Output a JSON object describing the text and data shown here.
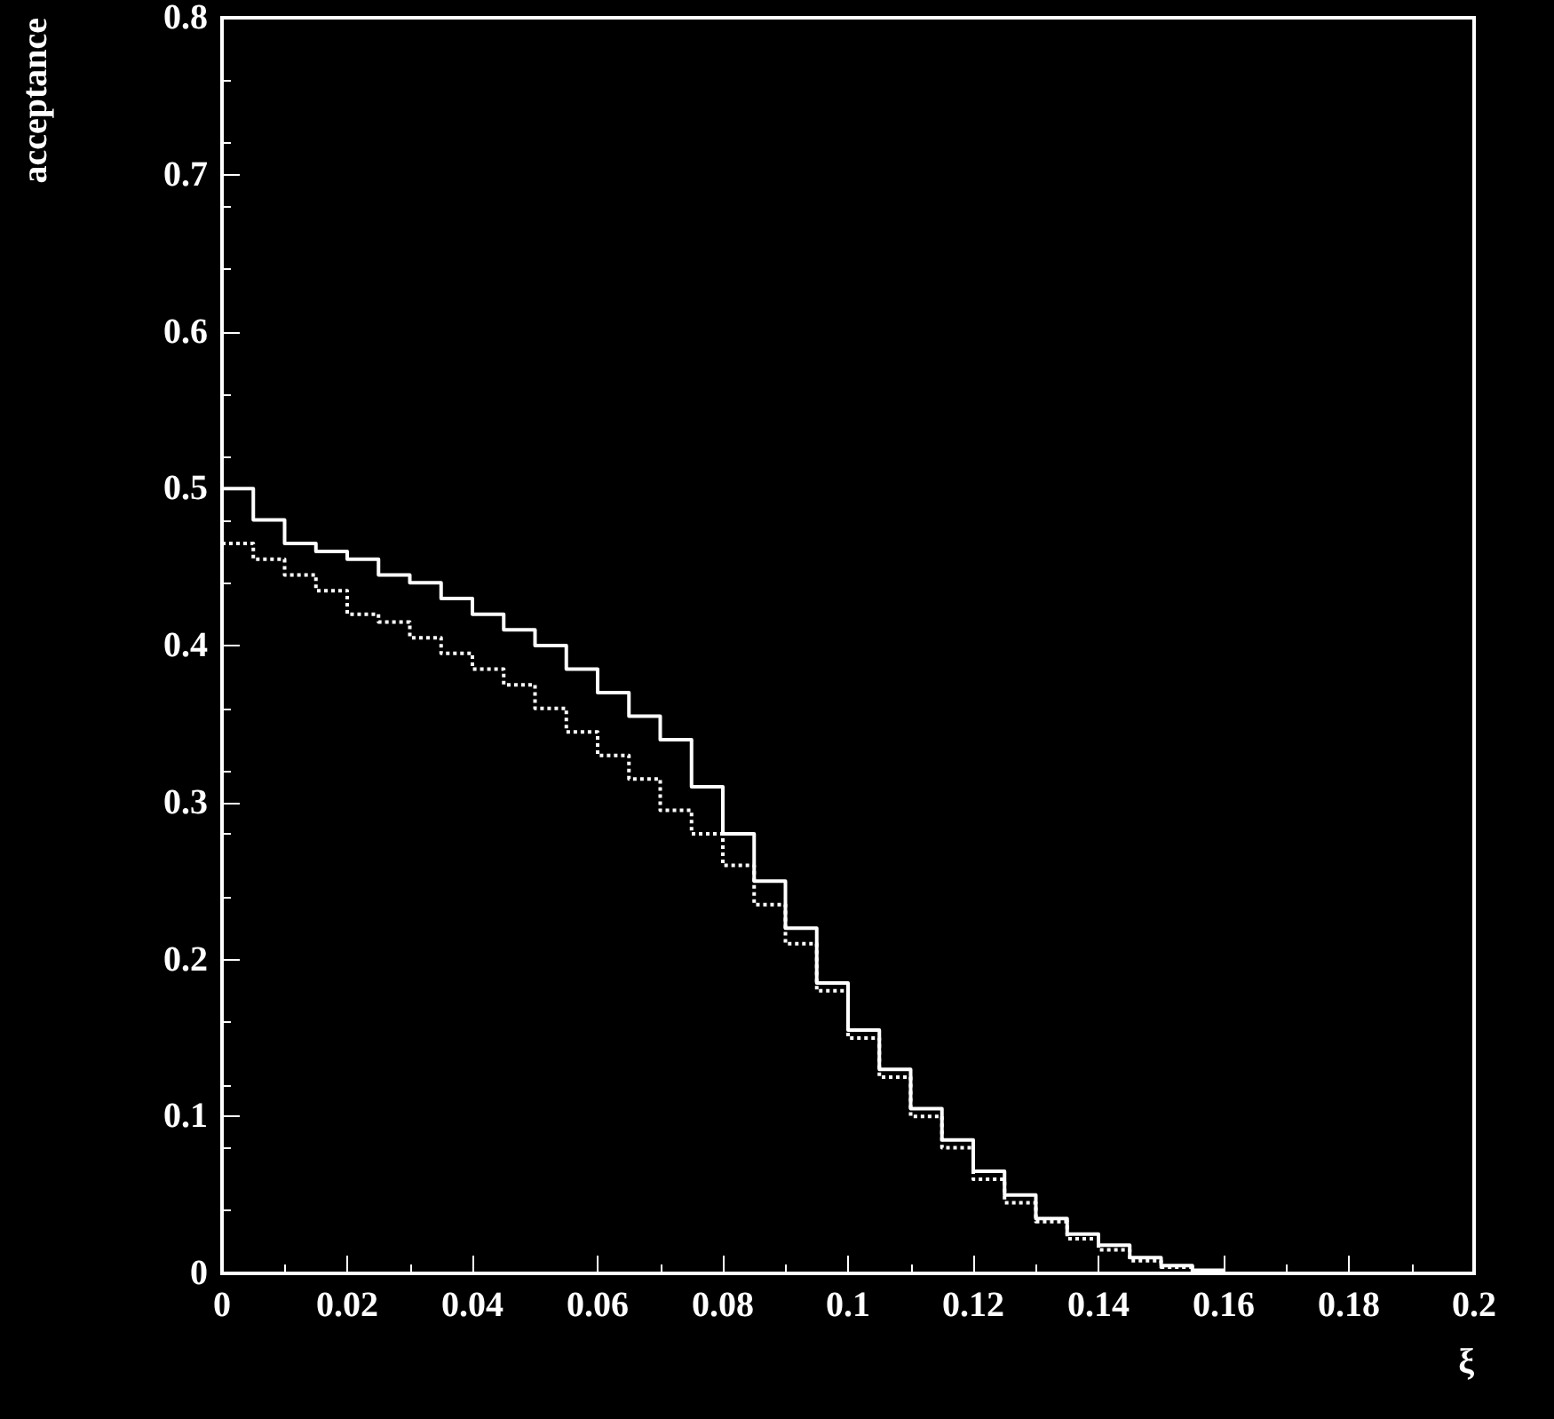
{
  "chart_data": {
    "type": "step",
    "xlabel": "ξ",
    "ylabel": "acceptance",
    "xlim": [
      0,
      0.2
    ],
    "xticks": [
      0,
      0.02,
      0.04,
      0.06,
      0.08,
      0.1,
      0.12,
      0.14,
      0.16,
      0.18,
      0.2
    ],
    "ylim": [
      0,
      0.8
    ],
    "yticks": [
      0,
      0.1,
      0.2,
      0.3,
      0.4,
      0.5,
      0.6,
      0.7,
      0.8
    ],
    "grid": false,
    "marker": "none",
    "x": [
      0,
      0.005,
      0.01,
      0.015,
      0.02,
      0.025,
      0.03,
      0.035,
      0.04,
      0.045,
      0.05,
      0.055,
      0.06,
      0.065,
      0.07,
      0.075,
      0.08,
      0.085,
      0.09,
      0.095,
      0.1,
      0.105,
      0.11,
      0.115,
      0.12,
      0.125,
      0.13,
      0.135,
      0.14,
      0.145,
      0.15,
      0.155,
      0.16,
      0.2
    ],
    "series": [
      {
        "color": "#ffffff",
        "line_style": "solid",
        "values": [
          0.5,
          0.48,
          0.465,
          0.46,
          0.455,
          0.445,
          0.44,
          0.43,
          0.42,
          0.41,
          0.4,
          0.385,
          0.37,
          0.355,
          0.34,
          0.31,
          0.28,
          0.25,
          0.22,
          0.185,
          0.155,
          0.13,
          0.105,
          0.085,
          0.065,
          0.05,
          0.035,
          0.025,
          0.018,
          0.01,
          0.005,
          0.002,
          0,
          0
        ]
      },
      {
        "color": "#ffffff",
        "line_style": "dotted",
        "values": [
          0.465,
          0.455,
          0.445,
          0.435,
          0.42,
          0.415,
          0.405,
          0.395,
          0.385,
          0.375,
          0.36,
          0.345,
          0.33,
          0.315,
          0.295,
          0.28,
          0.26,
          0.235,
          0.21,
          0.18,
          0.15,
          0.125,
          0.1,
          0.08,
          0.06,
          0.045,
          0.033,
          0.022,
          0.015,
          0.008,
          0.004,
          0.001,
          0,
          0
        ]
      }
    ]
  }
}
